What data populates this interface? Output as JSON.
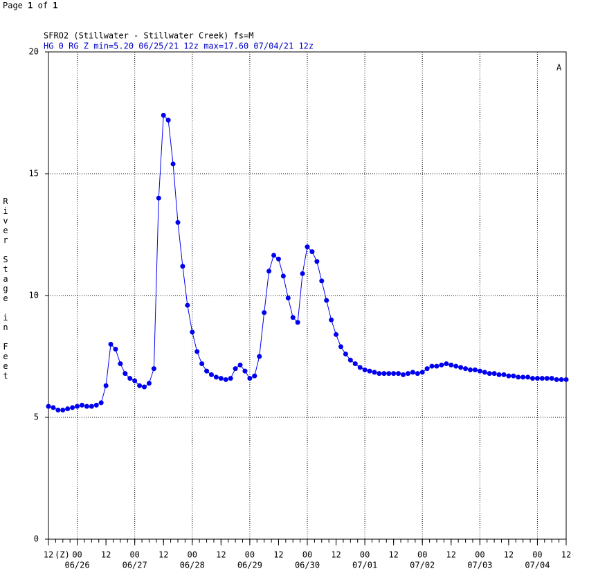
{
  "page_header": {
    "page_word": "Page",
    "page_num": "1",
    "of_word": "of",
    "page_total": "1"
  },
  "chart_data": {
    "type": "line",
    "title": "SFRO2 (Stillwater - Stillwater Creek) fs=M",
    "subtitle": "HG 0 RG Z min=5.20 06/25/21 12z max=17.60 07/04/21 12z",
    "corner_label": "A",
    "y_axis_label": "River Stage in Feet",
    "x_axis_label": "(Z)",
    "x": [
      "06/25 12",
      "06/25 14",
      "06/25 16",
      "06/25 18",
      "06/25 20",
      "06/25 22",
      "06/26 00",
      "06/26 02",
      "06/26 04",
      "06/26 06",
      "06/26 08",
      "06/26 10",
      "06/26 12",
      "06/26 14",
      "06/26 16",
      "06/26 18",
      "06/26 20",
      "06/26 22",
      "06/27 00",
      "06/27 02",
      "06/27 04",
      "06/27 06",
      "06/27 08",
      "06/27 10",
      "06/27 12",
      "06/27 14",
      "06/27 16",
      "06/27 18",
      "06/27 20",
      "06/27 22",
      "06/28 00",
      "06/28 02",
      "06/28 04",
      "06/28 06",
      "06/28 08",
      "06/28 10",
      "06/28 12",
      "06/28 14",
      "06/28 16",
      "06/28 18",
      "06/28 20",
      "06/28 22",
      "06/29 00",
      "06/29 02",
      "06/29 04",
      "06/29 06",
      "06/29 08",
      "06/29 10",
      "06/29 12",
      "06/29 14",
      "06/29 16",
      "06/29 18",
      "06/29 20",
      "06/29 22",
      "06/30 00",
      "06/30 02",
      "06/30 04",
      "06/30 06",
      "06/30 08",
      "06/30 10",
      "06/30 12",
      "06/30 14",
      "06/30 16",
      "06/30 18",
      "06/30 20",
      "06/30 22",
      "07/01 00",
      "07/01 02",
      "07/01 04",
      "07/01 06",
      "07/01 08",
      "07/01 10",
      "07/01 12",
      "07/01 14",
      "07/01 16",
      "07/01 18",
      "07/01 20",
      "07/01 22",
      "07/02 00",
      "07/02 02",
      "07/02 04",
      "07/02 06",
      "07/02 08",
      "07/02 10",
      "07/02 12",
      "07/02 14",
      "07/02 16",
      "07/02 18",
      "07/02 20",
      "07/02 22",
      "07/03 00",
      "07/03 02",
      "07/03 04",
      "07/03 06",
      "07/03 08",
      "07/03 10",
      "07/03 12",
      "07/03 14",
      "07/03 16",
      "07/03 18",
      "07/03 20",
      "07/03 22",
      "07/04 00",
      "07/04 02",
      "07/04 04",
      "07/04 06",
      "07/04 08",
      "07/04 10",
      "07/04 12"
    ],
    "series": [
      {
        "name": "HG",
        "color": "#0000ee",
        "values": [
          5.45,
          5.4,
          5.3,
          5.3,
          5.35,
          5.4,
          5.45,
          5.5,
          5.45,
          5.45,
          5.5,
          5.6,
          6.3,
          8.0,
          7.8,
          7.2,
          6.8,
          6.6,
          6.5,
          6.3,
          6.25,
          6.4,
          7.0,
          14.0,
          17.4,
          17.2,
          15.4,
          13.0,
          11.2,
          9.6,
          8.5,
          7.7,
          7.2,
          6.9,
          6.75,
          6.65,
          6.6,
          6.55,
          6.6,
          7.0,
          7.15,
          6.9,
          6.6,
          6.7,
          7.5,
          9.3,
          11.0,
          11.65,
          11.5,
          10.8,
          9.9,
          9.1,
          8.9,
          10.9,
          12.0,
          11.8,
          11.4,
          10.6,
          9.8,
          9.0,
          8.4,
          7.9,
          7.6,
          7.35,
          7.2,
          7.05,
          6.95,
          6.9,
          6.85,
          6.8,
          6.8,
          6.8,
          6.8,
          6.8,
          6.75,
          6.8,
          6.85,
          6.8,
          6.85,
          7.0,
          7.1,
          7.1,
          7.15,
          7.2,
          7.15,
          7.1,
          7.05,
          7.0,
          6.95,
          6.95,
          6.9,
          6.85,
          6.8,
          6.8,
          6.75,
          6.75,
          6.7,
          6.7,
          6.65,
          6.65,
          6.65,
          6.6,
          6.6,
          6.6,
          6.6,
          6.6,
          6.55,
          6.55,
          6.55
        ]
      }
    ],
    "xlim": [
      "06/25 12",
      "07/04 12"
    ],
    "xticks": [
      {
        "value": "06/25 12",
        "label": "12"
      },
      {
        "value": "06/26 00",
        "label": "00"
      },
      {
        "value": "06/26 12",
        "label": "12"
      },
      {
        "value": "06/27 00",
        "label": "00"
      },
      {
        "value": "06/27 12",
        "label": "12"
      },
      {
        "value": "06/28 00",
        "label": "00"
      },
      {
        "value": "06/28 12",
        "label": "12"
      },
      {
        "value": "06/29 00",
        "label": "00"
      },
      {
        "value": "06/29 12",
        "label": "12"
      },
      {
        "value": "06/30 00",
        "label": "00"
      },
      {
        "value": "06/30 12",
        "label": "12"
      },
      {
        "value": "07/01 00",
        "label": "00"
      },
      {
        "value": "07/01 12",
        "label": "12"
      },
      {
        "value": "07/02 00",
        "label": "00"
      },
      {
        "value": "07/02 12",
        "label": "12"
      },
      {
        "value": "07/03 00",
        "label": "00"
      },
      {
        "value": "07/03 12",
        "label": "12"
      },
      {
        "value": "07/04 00",
        "label": "00"
      },
      {
        "value": "07/04 12",
        "label": "12"
      }
    ],
    "day_labels": [
      {
        "value": "06/26 00",
        "label": "06/26"
      },
      {
        "value": "06/27 00",
        "label": "06/27"
      },
      {
        "value": "06/28 00",
        "label": "06/28"
      },
      {
        "value": "06/29 00",
        "label": "06/29"
      },
      {
        "value": "06/30 00",
        "label": "06/30"
      },
      {
        "value": "07/01 00",
        "label": "07/01"
      },
      {
        "value": "07/02 00",
        "label": "07/02"
      },
      {
        "value": "07/03 00",
        "label": "07/03"
      },
      {
        "value": "07/04 00",
        "label": "07/04"
      }
    ],
    "ylim": [
      0,
      20
    ],
    "yticks": [
      0,
      5,
      10,
      15,
      20
    ],
    "grid": true
  }
}
